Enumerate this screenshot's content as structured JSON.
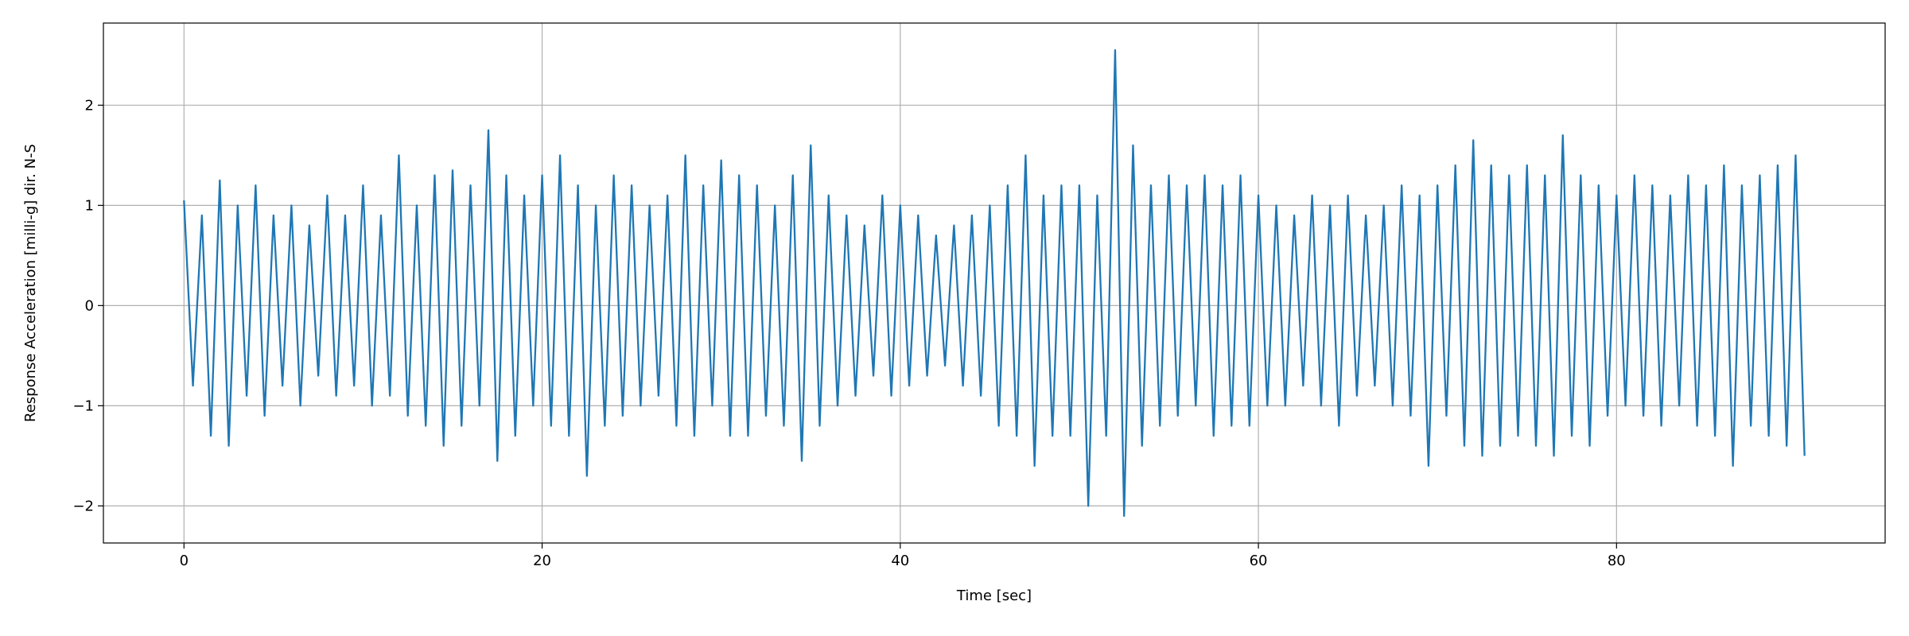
{
  "chart_data": {
    "type": "line",
    "x_label": "Time [sec]",
    "y_label": "Response Acceleration [milli-g] dir. N-S",
    "xlim": [
      -4.5,
      95
    ],
    "ylim": [
      -2.37,
      2.82
    ],
    "xticks": [
      0,
      20,
      40,
      60,
      80
    ],
    "yticks": [
      {
        "value": -2,
        "label": "−2"
      },
      {
        "value": -1,
        "label": "−1"
      },
      0,
      1,
      2
    ],
    "grid": true,
    "series": [
      {
        "color": "#1f77b4",
        "x": [
          0,
          0.5,
          1,
          1.5,
          2,
          2.5,
          3,
          3.5,
          4,
          4.5,
          5,
          5.5,
          6,
          6.5,
          7,
          7.5,
          8,
          8.5,
          9,
          9.5,
          10,
          10.5,
          11,
          11.5,
          12,
          12.5,
          13,
          13.5,
          14,
          14.5,
          15,
          15.5,
          16,
          16.5,
          17,
          17.5,
          18,
          18.5,
          19,
          19.5,
          20,
          20.5,
          21,
          21.5,
          22,
          22.5,
          23,
          23.5,
          24,
          24.5,
          25,
          25.5,
          26,
          26.5,
          27,
          27.5,
          28,
          28.5,
          29,
          29.5,
          30,
          30.5,
          31,
          31.5,
          32,
          32.5,
          33,
          33.5,
          34,
          34.5,
          35,
          35.5,
          36,
          36.5,
          37,
          37.5,
          38,
          38.5,
          39,
          39.5,
          40,
          40.5,
          41,
          41.5,
          42,
          42.5,
          43,
          43.5,
          44,
          44.5,
          45,
          45.5,
          46,
          46.5,
          47,
          47.5,
          48,
          48.5,
          49,
          49.5,
          50,
          50.5,
          51,
          51.5,
          52,
          52.5,
          53,
          53.5,
          54,
          54.5,
          55,
          55.5,
          56,
          56.5,
          57,
          57.5,
          58,
          58.5,
          59,
          59.5,
          60,
          60.5,
          61,
          61.5,
          62,
          62.5,
          63,
          63.5,
          64,
          64.5,
          65,
          65.5,
          66,
          66.5,
          67,
          67.5,
          68,
          68.5,
          69,
          69.5,
          70,
          70.5,
          71,
          71.5,
          72,
          72.5,
          73,
          73.5,
          74,
          74.5,
          75,
          75.5,
          76,
          76.5,
          77,
          77.5,
          78,
          78.5,
          79,
          79.5,
          80,
          80.5,
          81,
          81.5,
          82,
          82.5,
          83,
          83.5,
          84,
          84.5,
          85,
          85.5,
          86,
          86.5,
          87,
          87.5,
          88,
          88.5,
          89,
          89.5,
          90,
          90.5
        ],
        "values": [
          1.05,
          -0.8,
          0.9,
          -1.3,
          1.25,
          -1.4,
          1.0,
          -0.9,
          1.2,
          -1.1,
          0.9,
          -0.8,
          1.0,
          -1.0,
          0.8,
          -0.7,
          1.1,
          -0.9,
          0.9,
          -0.8,
          1.2,
          -1.0,
          0.9,
          -0.9,
          1.5,
          -1.1,
          1.0,
          -1.2,
          1.3,
          -1.4,
          1.35,
          -1.2,
          1.2,
          -1.0,
          1.75,
          -1.55,
          1.3,
          -1.3,
          1.1,
          -1.0,
          1.3,
          -1.2,
          1.5,
          -1.3,
          1.2,
          -1.7,
          1.0,
          -1.2,
          1.3,
          -1.1,
          1.2,
          -1.0,
          1.0,
          -0.9,
          1.1,
          -1.2,
          1.5,
          -1.3,
          1.2,
          -1.0,
          1.45,
          -1.3,
          1.3,
          -1.3,
          1.2,
          -1.1,
          1.0,
          -1.2,
          1.3,
          -1.55,
          1.6,
          -1.2,
          1.1,
          -1.0,
          0.9,
          -0.9,
          0.8,
          -0.7,
          1.1,
          -0.9,
          1.0,
          -0.8,
          0.9,
          -0.7,
          0.7,
          -0.6,
          0.8,
          -0.8,
          0.9,
          -0.9,
          1.0,
          -1.2,
          1.2,
          -1.3,
          1.5,
          -1.6,
          1.1,
          -1.3,
          1.2,
          -1.3,
          1.2,
          -2.0,
          1.1,
          -1.3,
          2.55,
          -2.1,
          1.6,
          -1.4,
          1.2,
          -1.2,
          1.3,
          -1.1,
          1.2,
          -1.0,
          1.3,
          -1.3,
          1.2,
          -1.2,
          1.3,
          -1.2,
          1.1,
          -1.0,
          1.0,
          -1.0,
          0.9,
          -0.8,
          1.1,
          -1.0,
          1.0,
          -1.2,
          1.1,
          -0.9,
          0.9,
          -0.8,
          1.0,
          -1.0,
          1.2,
          -1.1,
          1.1,
          -1.6,
          1.2,
          -1.1,
          1.4,
          -1.4,
          1.65,
          -1.5,
          1.4,
          -1.4,
          1.3,
          -1.3,
          1.4,
          -1.4,
          1.3,
          -1.5,
          1.7,
          -1.3,
          1.3,
          -1.4,
          1.2,
          -1.1,
          1.1,
          -1.0,
          1.3,
          -1.1,
          1.2,
          -1.2,
          1.1,
          -1.0,
          1.3,
          -1.2,
          1.2,
          -1.3,
          1.4,
          -1.6,
          1.2,
          -1.2,
          1.3,
          -1.3,
          1.4,
          -1.4,
          1.5,
          -1.5
        ]
      }
    ]
  }
}
